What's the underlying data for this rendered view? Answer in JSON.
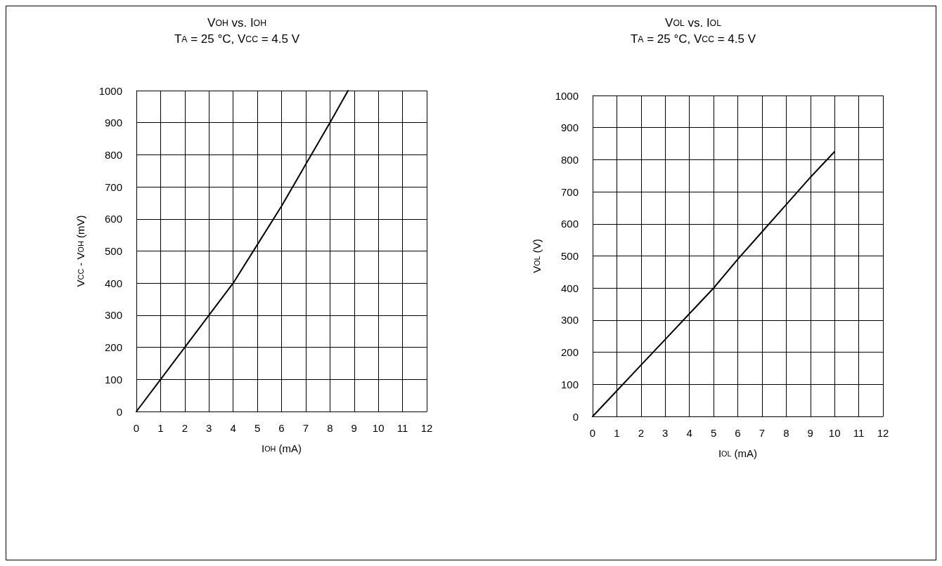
{
  "chart_data": [
    {
      "type": "line",
      "title": "V$_{OH}$ vs. I$_{OH}$",
      "subtitle": "T$_{A}$ = 25 °C, V$_{CC}$ = 4.5 V",
      "xlabel": "I$_{OH}$ (mA)",
      "ylabel": "V$_{CC}$ - V$_{OH}$ (mV)",
      "series": [
        {
          "color": "#000000",
          "x": [
            0,
            1,
            2,
            3,
            4,
            5,
            6,
            7,
            8,
            8.75
          ],
          "values": [
            0,
            100,
            200,
            300,
            400,
            520,
            640,
            770,
            900,
            1000
          ]
        }
      ],
      "xlim": [
        0,
        12
      ],
      "xticks": [
        0,
        1,
        2,
        3,
        4,
        5,
        6,
        7,
        8,
        9,
        10,
        11,
        12
      ],
      "ylim": [
        0,
        1000
      ],
      "yticks": [
        0,
        100,
        200,
        300,
        400,
        500,
        600,
        700,
        800,
        900,
        1000
      ],
      "grid": true,
      "marker": "none",
      "line_style": "solid"
    },
    {
      "type": "line",
      "title": "V$_{OL}$ vs. I$_{OL}$",
      "subtitle": "T$_{A}$ = 25 °C, V$_{CC}$ = 4.5 V",
      "xlabel": "I$_{OL}$ (mA)",
      "ylabel": "V$_{OL}$ (V)",
      "series": [
        {
          "color": "#000000",
          "x": [
            0,
            1,
            2,
            3,
            4,
            5,
            6,
            7,
            8,
            9,
            10
          ],
          "values": [
            0,
            80,
            160,
            240,
            320,
            400,
            490,
            575,
            660,
            745,
            825
          ]
        }
      ],
      "xlim": [
        0,
        12
      ],
      "xticks": [
        0,
        1,
        2,
        3,
        4,
        5,
        6,
        7,
        8,
        9,
        10,
        11,
        12
      ],
      "ylim": [
        0,
        1000
      ],
      "yticks": [
        0,
        100,
        200,
        300,
        400,
        500,
        600,
        700,
        800,
        900,
        1000
      ],
      "grid": true,
      "marker": "none",
      "line_style": "solid"
    }
  ]
}
